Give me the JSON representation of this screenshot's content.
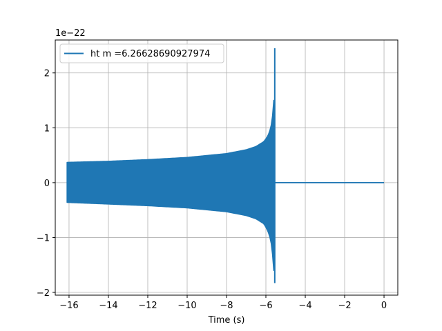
{
  "chart_data": {
    "type": "line",
    "title": "",
    "xlabel": "Time (s)",
    "ylabel": "",
    "y_offset_label": "1e−22",
    "xlim": [
      -16.7,
      0.7
    ],
    "ylim": [
      -2.05,
      2.6
    ],
    "xticks": [
      -16,
      -14,
      -12,
      -10,
      -8,
      -6,
      -4,
      -2,
      0
    ],
    "xtick_labels": [
      "−16",
      "−14",
      "−12",
      "−10",
      "−8",
      "−6",
      "−4",
      "−2",
      "0"
    ],
    "yticks": [
      -2,
      -1,
      0,
      1,
      2
    ],
    "ytick_labels": [
      "−2",
      "−1",
      "0",
      "1",
      "2"
    ],
    "grid": true,
    "legend_position": "upper-left",
    "series": [
      {
        "name": "ht m =6.26628690927974",
        "color": "#1f77b4",
        "t_start": -16.1,
        "t_merger": -5.55,
        "t_end": 0.0,
        "upper_envelope": {
          "x": [
            -16.1,
            -14,
            -12,
            -10,
            -8,
            -7,
            -6.5,
            -6.1,
            -5.9,
            -5.75,
            -5.65,
            -5.6
          ],
          "y": [
            0.37,
            0.39,
            0.42,
            0.46,
            0.53,
            0.6,
            0.66,
            0.75,
            0.85,
            1.0,
            1.25,
            1.5
          ]
        },
        "lower_envelope": {
          "x": [
            -16.1,
            -14,
            -12,
            -10,
            -8,
            -7,
            -6.5,
            -6.1,
            -5.9,
            -5.75,
            -5.65,
            -5.6
          ],
          "y": [
            -0.36,
            -0.39,
            -0.42,
            -0.46,
            -0.53,
            -0.6,
            -0.66,
            -0.75,
            -0.88,
            -1.05,
            -1.35,
            -1.6
          ]
        },
        "peak_max": 2.45,
        "peak_min": -1.83,
        "post_merger_value": 0.0
      }
    ]
  }
}
